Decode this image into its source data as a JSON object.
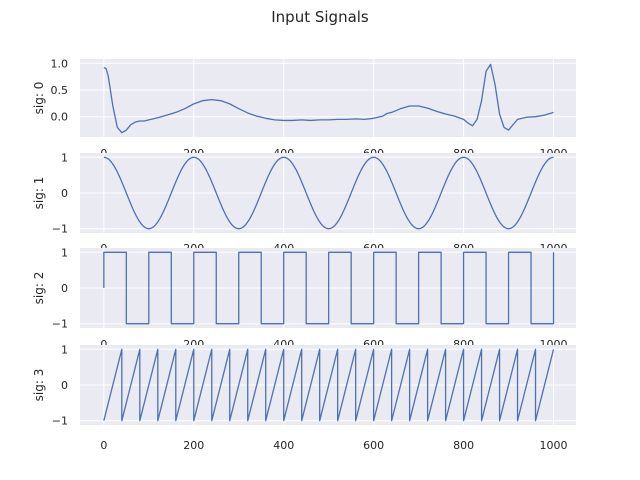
{
  "figure": {
    "title": "Input Signals"
  },
  "style": {
    "axes_bg": "#eaeaf2",
    "grid": "#ffffff",
    "line": "#4c72b0",
    "text": "#262626"
  },
  "chart_data": [
    {
      "type": "line",
      "ylabel": "sig: 0",
      "xlim": [
        0,
        1000
      ],
      "ylim": [
        -0.38,
        1.08
      ],
      "xticks": [
        0,
        200,
        400,
        600,
        800,
        1000
      ],
      "yticks": [
        1.0,
        0.5,
        0.0
      ],
      "ytick_labels": [
        "1.0",
        "0.5",
        "0.0"
      ],
      "grid": true,
      "series": [
        {
          "x": [
            0,
            5,
            10,
            20,
            30,
            40,
            50,
            60,
            70,
            80,
            90,
            100,
            120,
            140,
            160,
            180,
            200,
            220,
            240,
            260,
            280,
            300,
            320,
            340,
            360,
            380,
            400,
            420,
            440,
            460,
            480,
            500,
            520,
            540,
            560,
            580,
            600,
            620,
            630,
            640,
            660,
            680,
            700,
            720,
            740,
            760,
            780,
            800,
            810,
            820,
            830,
            840,
            850,
            860,
            870,
            880,
            890,
            900,
            920,
            940,
            960,
            980,
            1000
          ],
          "y": [
            0.92,
            0.9,
            0.75,
            0.2,
            -0.2,
            -0.3,
            -0.25,
            -0.15,
            -0.1,
            -0.08,
            -0.08,
            -0.06,
            -0.02,
            0.03,
            0.08,
            0.15,
            0.24,
            0.3,
            0.32,
            0.3,
            0.24,
            0.15,
            0.07,
            0.01,
            -0.03,
            -0.06,
            -0.07,
            -0.07,
            -0.06,
            -0.07,
            -0.06,
            -0.06,
            -0.05,
            -0.05,
            -0.04,
            -0.05,
            -0.03,
            0.01,
            0.06,
            0.08,
            0.15,
            0.2,
            0.2,
            0.16,
            0.1,
            0.05,
            0.01,
            -0.05,
            -0.12,
            -0.17,
            -0.05,
            0.3,
            0.85,
            0.98,
            0.6,
            0.05,
            -0.2,
            -0.25,
            -0.05,
            -0.01,
            0.0,
            0.03,
            0.08
          ]
        }
      ]
    },
    {
      "type": "line",
      "ylabel": "sig: 1",
      "xlim": [
        0,
        1000
      ],
      "ylim": [
        -1.12,
        1.12
      ],
      "xticks": [
        0,
        200,
        400,
        600,
        800,
        1000
      ],
      "yticks": [
        1,
        0,
        -1
      ],
      "ytick_labels": [
        "1",
        "0",
        "−1"
      ],
      "grid": true,
      "series": [
        {
          "function": "cosine",
          "period": 200,
          "amplitude": 1,
          "x_start": 0,
          "x_end": 1000
        }
      ]
    },
    {
      "type": "line",
      "ylabel": "sig: 2",
      "xlim": [
        0,
        1000
      ],
      "ylim": [
        -1.12,
        1.12
      ],
      "xticks": [
        0,
        200,
        400,
        600,
        800,
        1000
      ],
      "yticks": [
        1,
        0,
        -1
      ],
      "ytick_labels": [
        "1",
        "0",
        "−1"
      ],
      "grid": true,
      "series": [
        {
          "function": "square",
          "period": 100,
          "amplitude": 1,
          "x_start": 0,
          "x_end": 1000,
          "start_value": 0
        }
      ]
    },
    {
      "type": "line",
      "ylabel": "sig: 3",
      "xlim": [
        0,
        1000
      ],
      "ylim": [
        -1.12,
        1.12
      ],
      "xticks": [
        0,
        200,
        400,
        600,
        800,
        1000
      ],
      "yticks": [
        1,
        0,
        -1
      ],
      "ytick_labels": [
        "1",
        "0",
        "−1"
      ],
      "grid": true,
      "series": [
        {
          "function": "sawtooth",
          "period": 40,
          "amplitude": 1,
          "x_start": 0,
          "x_end": 1000
        }
      ]
    }
  ]
}
